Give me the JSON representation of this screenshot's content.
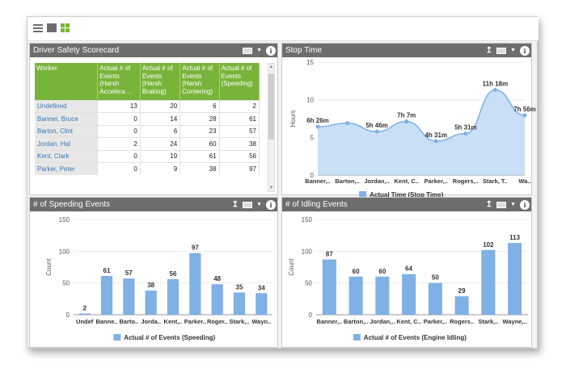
{
  "toolbar": {
    "icons": [
      "list-icon",
      "single-panel-icon",
      "grid-icon"
    ]
  },
  "scorecard": {
    "title": "Driver Safety Scorecard",
    "columns": [
      "Worker",
      "Actual # of Events (Harsh Accelera…",
      "Actual # of Events (Harsh Braking)",
      "Actual # of Events (Harsh Cornering)",
      "Actual # of Events (Speeding)"
    ],
    "rows": [
      [
        "Undefined",
        "13",
        "20",
        "6",
        "2"
      ],
      [
        "Banner, Bruce",
        "0",
        "14",
        "28",
        "61"
      ],
      [
        "Barton, Clint",
        "0",
        "6",
        "23",
        "57"
      ],
      [
        "Jordan, Hal",
        "2",
        "24",
        "60",
        "38"
      ],
      [
        "Kent, Clark",
        "0",
        "19",
        "61",
        "56"
      ],
      [
        "Parker, Peter",
        "0",
        "9",
        "38",
        "97"
      ]
    ]
  },
  "stop_panel": {
    "title": "Stop Time"
  },
  "speed_panel": {
    "title": "# of Speeding Events"
  },
  "idle_panel": {
    "title": "# of Idling Events"
  },
  "chart_data": [
    {
      "type": "area",
      "title": "Stop Time",
      "ylabel": "Hours",
      "ylim": [
        0,
        15
      ],
      "yticks": [
        0,
        5,
        10,
        15
      ],
      "categories": [
        "Banner,..",
        "Barton,..",
        "Jordan,..",
        "Kent, C..",
        "Parker,..",
        "Rogers,..",
        "Stark, T..",
        "Wa.."
      ],
      "series": [
        {
          "name": "Actual Time (Stop Time)",
          "values": [
            6.43,
            6.9,
            5.77,
            7.12,
            4.52,
            5.52,
            11.3,
            7.93
          ],
          "labels": [
            "6h 26m",
            "",
            "5h 46m",
            "7h 7m",
            "4h 31m",
            "5h 31m",
            "11h 18m",
            "7h 56m"
          ]
        }
      ],
      "legend": "bottom",
      "color": "#7fb0e6"
    },
    {
      "type": "bar",
      "title": "# of Speeding Events",
      "ylabel": "Count",
      "ylim": [
        0,
        150
      ],
      "yticks": [
        0,
        50,
        100,
        150
      ],
      "categories": [
        "Undef",
        "Banne..",
        "Barto..",
        "Jorda..",
        "Kent,..",
        "Parker..",
        "Roger..",
        "Stark,..",
        "Wayn.."
      ],
      "series": [
        {
          "name": "Actual # of Events (Speeding)",
          "values": [
            2,
            61,
            57,
            38,
            56,
            97,
            48,
            35,
            34
          ]
        }
      ],
      "legend": "bottom",
      "color": "#7fb0e6"
    },
    {
      "type": "bar",
      "title": "# of Idling Events",
      "ylabel": "Count",
      "ylim": [
        0,
        150
      ],
      "yticks": [
        0,
        50,
        100,
        150
      ],
      "categories": [
        "Banner,..",
        "Barton,..",
        "Jordan,..",
        "Kent, C..",
        "Parker,..",
        "Rogers..",
        "Stark,..",
        "Wayne,.."
      ],
      "series": [
        {
          "name": "Actual # of Events (Engine Idling)",
          "values": [
            87,
            60,
            60,
            64,
            50,
            29,
            102,
            113
          ]
        }
      ],
      "legend": "bottom",
      "color": "#7fb0e6"
    }
  ]
}
